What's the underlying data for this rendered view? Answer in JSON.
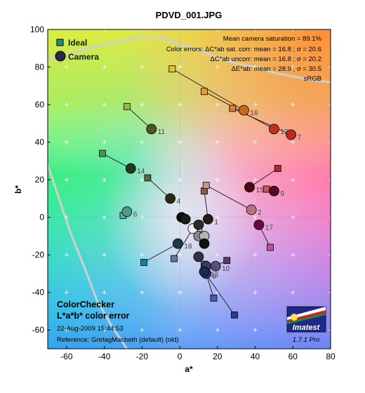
{
  "chart_data": {
    "type": "scatter",
    "title": "PDVD_001.JPG",
    "xlabel": "a*",
    "ylabel": "b*",
    "xlim": [
      -70,
      80
    ],
    "ylim": [
      -70,
      100
    ],
    "xticks": [
      -60,
      -40,
      -20,
      0,
      20,
      40,
      60,
      80
    ],
    "yticks": [
      -60,
      -40,
      -20,
      0,
      20,
      40,
      60,
      80,
      100
    ],
    "xtick_labels": [
      "-60",
      "-40",
      "-20",
      "0",
      "20",
      "40",
      "60",
      "80"
    ],
    "ytick_labels": [
      "-60",
      "-40",
      "-20",
      "0",
      "20",
      "40",
      "60",
      "80",
      "100"
    ],
    "legend": {
      "position": "top-left",
      "ideal_label": "Ideal",
      "camera_label": "Camera"
    },
    "stats": {
      "line1": "Mean camera saturation = 89.1%",
      "line2": "Color errors:  ΔC*ab sat. corr:  mean = 16.8 ;  σ = 20.6",
      "line3": "ΔC*ab uncorr:  mean = 16.8 ;  σ = 20.2",
      "line4": "ΔE*ab:  mean = 28.9 ;  σ = 30.5",
      "line5": "sRGB"
    },
    "footer": {
      "line1": "ColorChecker",
      "line2": "L*a*b* color error",
      "line3": "22-Aug-2009 15:44:53",
      "line4": "Reference: GretagMacbeth (default) (old)"
    },
    "logo": {
      "text": "Imatest",
      "version": "1.7.1  Pro"
    },
    "series": [
      {
        "name": "Ideal",
        "points": [
          {
            "a": 13,
            "b": 14,
            "color": "#8a5a48",
            "label": ""
          },
          {
            "a": 14,
            "b": 17,
            "color": "#c49a88",
            "label": ""
          },
          {
            "a": -3,
            "b": -22,
            "color": "#5e7aa0",
            "label": ""
          },
          {
            "a": -17,
            "b": 21,
            "color": "#566a3a",
            "label": ""
          },
          {
            "a": 13,
            "b": -25,
            "color": "#7a7aae",
            "label": ""
          },
          {
            "a": -30,
            "b": 1,
            "color": "#5ab0a2",
            "label": ""
          },
          {
            "a": 28,
            "b": 58,
            "color": "#e07e2e",
            "label": ""
          },
          {
            "a": 18,
            "b": -43,
            "color": "#4a5aa8",
            "label": ""
          },
          {
            "a": 46,
            "b": 15,
            "color": "#c85460",
            "label": ""
          },
          {
            "a": 25,
            "b": -23,
            "color": "#5c3c6c",
            "label": ""
          },
          {
            "a": -28,
            "b": 59,
            "color": "#9abc3c",
            "label": ""
          },
          {
            "a": 13,
            "b": 67,
            "color": "#e8a22c",
            "label": ""
          },
          {
            "a": 29,
            "b": -52,
            "color": "#2a3c94",
            "label": ""
          },
          {
            "a": -41,
            "b": 34,
            "color": "#469a48",
            "label": ""
          },
          {
            "a": 52,
            "b": 26,
            "color": "#b02c34",
            "label": ""
          },
          {
            "a": -4,
            "b": 79,
            "color": "#e6c41e",
            "label": ""
          },
          {
            "a": 48,
            "b": -16,
            "color": "#bc509a",
            "label": ""
          },
          {
            "a": -19,
            "b": -24,
            "color": "#0888a4",
            "label": ""
          }
        ]
      },
      {
        "name": "Camera",
        "points": [
          {
            "a": 15,
            "b": -1,
            "color": "#2a1a16",
            "label": "1"
          },
          {
            "a": 38,
            "b": 4,
            "color": "#b4747a",
            "label": "2"
          },
          {
            "a": 7,
            "b": -6,
            "color": "#f0eef4",
            "label": "3"
          },
          {
            "a": -5,
            "b": 10,
            "color": "#2a2a16",
            "label": "4"
          },
          {
            "a": 14,
            "b": -26,
            "color": "#3a3a60",
            "label": "5"
          },
          {
            "a": -28,
            "b": 3,
            "color": "#4a9a88",
            "label": "6"
          },
          {
            "a": 59,
            "b": 44,
            "color": "#c02818",
            "label": "7"
          },
          {
            "a": 14,
            "b": -30,
            "color": "#283a78",
            "label": "8"
          },
          {
            "a": 50,
            "b": 14,
            "color": "#5a0a1e",
            "label": "9"
          },
          {
            "a": 19,
            "b": -26,
            "color": "#5a5078",
            "label": "10"
          },
          {
            "a": -15,
            "b": 47,
            "color": "#4a5a1a",
            "label": "11"
          },
          {
            "a": 50,
            "b": 47,
            "color": "#c0301a",
            "label": "12"
          },
          {
            "a": 13,
            "b": -29,
            "color": "#1a2a58",
            "label": "13"
          },
          {
            "a": -26,
            "b": 26,
            "color": "#1a3a1a",
            "label": "14"
          },
          {
            "a": 37,
            "b": 16,
            "color": "#4a0a14",
            "label": "15"
          },
          {
            "a": 34,
            "b": 57,
            "color": "#c86818",
            "label": "16"
          },
          {
            "a": 42,
            "b": -4,
            "color": "#6a0a3c",
            "label": "17"
          },
          {
            "a": -1,
            "b": -14,
            "color": "#1a3a4a",
            "label": "18"
          },
          {
            "a": 1,
            "b": 0,
            "color": "#0a0a0a",
            "label": ""
          },
          {
            "a": 3,
            "b": -1,
            "color": "#1a1a1a",
            "label": ""
          },
          {
            "a": 10,
            "b": -4,
            "color": "#2a2a2a",
            "label": ""
          },
          {
            "a": 10,
            "b": -10,
            "color": "#8a8a8a",
            "label": ""
          },
          {
            "a": 13,
            "b": -10,
            "color": "#b4b4b4",
            "label": ""
          },
          {
            "a": 13,
            "b": -14,
            "color": "#101010",
            "label": ""
          },
          {
            "a": 10,
            "b": -21,
            "color": "#323246",
            "label": ""
          }
        ]
      }
    ],
    "links": [
      [
        0,
        0
      ],
      [
        1,
        1
      ],
      [
        2,
        2
      ],
      [
        3,
        3
      ],
      [
        4,
        4
      ],
      [
        5,
        5
      ],
      [
        6,
        6
      ],
      [
        7,
        7
      ],
      [
        8,
        8
      ],
      [
        9,
        9
      ],
      [
        10,
        10
      ],
      [
        11,
        11
      ],
      [
        12,
        12
      ],
      [
        13,
        13
      ],
      [
        14,
        14
      ],
      [
        15,
        15
      ],
      [
        16,
        16
      ],
      [
        17,
        17
      ]
    ],
    "gamut_curves": [
      [
        [
          -70,
          84
        ],
        [
          -60,
          87
        ],
        [
          -40,
          92
        ],
        [
          -20,
          96
        ],
        [
          -10,
          96
        ],
        [
          0,
          92
        ],
        [
          10,
          89
        ],
        [
          20,
          85
        ],
        [
          30,
          82
        ],
        [
          40,
          80
        ],
        [
          50,
          77
        ],
        [
          60,
          75
        ],
        [
          70,
          73
        ],
        [
          80,
          72
        ]
      ],
      [
        [
          -70,
          28
        ],
        [
          -64,
          10
        ],
        [
          -58,
          -8
        ],
        [
          -50,
          -28
        ],
        [
          -44,
          -44
        ],
        [
          -36,
          -58
        ],
        [
          -28,
          -70
        ]
      ]
    ]
  }
}
